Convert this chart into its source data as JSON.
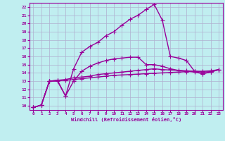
{
  "xlabel": "Windchill (Refroidissement éolien,°C)",
  "background_color": "#c0eef0",
  "grid_color": "#b0b0d0",
  "line_color": "#990099",
  "xlim": [
    -0.5,
    23.5
  ],
  "ylim": [
    9.5,
    22.5
  ],
  "xticks": [
    0,
    1,
    2,
    3,
    4,
    5,
    6,
    7,
    8,
    9,
    10,
    11,
    12,
    13,
    14,
    15,
    16,
    17,
    18,
    19,
    20,
    21,
    22,
    23
  ],
  "yticks": [
    10,
    11,
    12,
    13,
    14,
    15,
    16,
    17,
    18,
    19,
    20,
    21,
    22
  ],
  "lines": [
    {
      "x": [
        0,
        1,
        2,
        3,
        4,
        5,
        6,
        7,
        8,
        9,
        10,
        11,
        12,
        13,
        14,
        15,
        16,
        17,
        18,
        19,
        20,
        21,
        22,
        23
      ],
      "y": [
        9.8,
        10.1,
        13.0,
        13.0,
        11.2,
        14.5,
        16.5,
        17.2,
        17.7,
        18.5,
        19.0,
        19.8,
        20.5,
        21.0,
        21.7,
        22.3,
        20.4,
        16.0,
        15.8,
        15.5,
        14.2,
        13.9,
        14.1,
        14.4
      ],
      "marker": "+",
      "markersize": 4,
      "linewidth": 1.0
    },
    {
      "x": [
        0,
        1,
        2,
        3,
        4,
        5,
        6,
        7,
        8,
        9,
        10,
        11,
        12,
        13,
        14,
        15,
        16,
        17,
        18,
        19,
        20,
        21,
        22,
        23
      ],
      "y": [
        9.8,
        10.1,
        13.0,
        13.1,
        11.2,
        13.0,
        14.2,
        14.8,
        15.2,
        15.5,
        15.7,
        15.8,
        15.9,
        15.9,
        15.0,
        15.0,
        14.8,
        14.5,
        14.3,
        14.2,
        14.1,
        13.9,
        14.1,
        14.4
      ],
      "marker": "+",
      "markersize": 4,
      "linewidth": 1.0
    },
    {
      "x": [
        0,
        1,
        2,
        3,
        4,
        5,
        6,
        7,
        8,
        9,
        10,
        11,
        12,
        13,
        14,
        15,
        16,
        17,
        18,
        19,
        20,
        21,
        22,
        23
      ],
      "y": [
        9.8,
        10.1,
        13.0,
        13.1,
        13.2,
        13.4,
        13.5,
        13.6,
        13.8,
        13.9,
        14.0,
        14.1,
        14.2,
        14.3,
        14.4,
        14.5,
        14.4,
        14.35,
        14.3,
        14.25,
        14.2,
        14.1,
        14.15,
        14.4
      ],
      "marker": "+",
      "markersize": 4,
      "linewidth": 1.0
    },
    {
      "x": [
        0,
        1,
        2,
        3,
        4,
        5,
        6,
        7,
        8,
        9,
        10,
        11,
        12,
        13,
        14,
        15,
        16,
        17,
        18,
        19,
        20,
        21,
        22,
        23
      ],
      "y": [
        9.8,
        10.1,
        13.0,
        13.05,
        13.1,
        13.2,
        13.3,
        13.4,
        13.5,
        13.6,
        13.7,
        13.75,
        13.8,
        13.85,
        13.9,
        13.95,
        14.0,
        14.05,
        14.1,
        14.15,
        14.2,
        14.2,
        14.25,
        14.4
      ],
      "marker": "+",
      "markersize": 4,
      "linewidth": 1.0
    }
  ]
}
